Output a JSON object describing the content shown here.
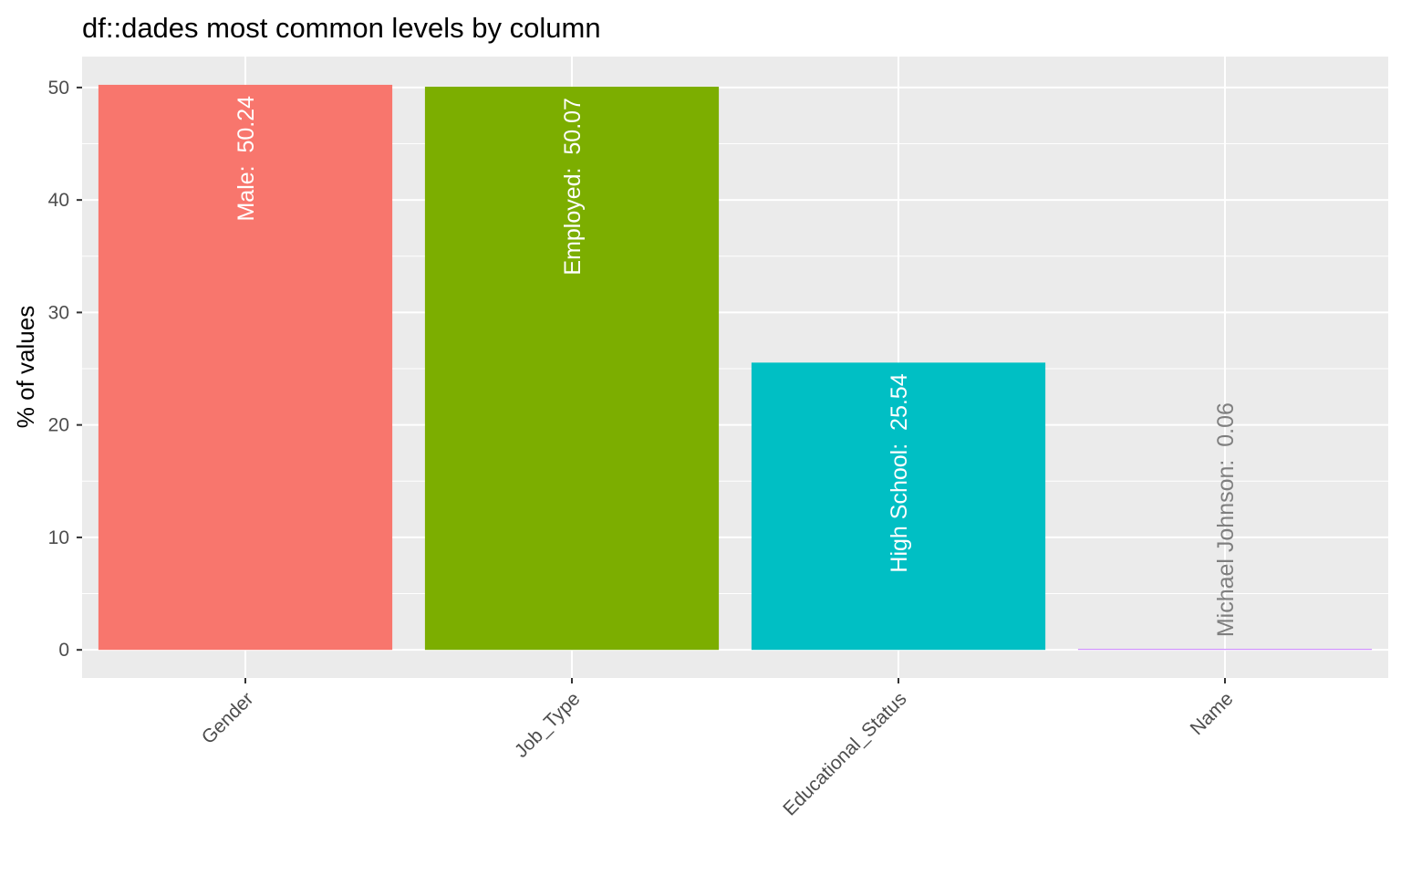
{
  "chart_data": {
    "type": "bar",
    "title": "df::dades most common levels by column",
    "xlabel": "",
    "ylabel": "% of values",
    "categories": [
      "Gender",
      "Job_Type",
      "Educational_Status",
      "Name"
    ],
    "levels": [
      "Male",
      "Employed",
      "High School",
      "Michael Johnson"
    ],
    "values": [
      50.24,
      50.07,
      25.54,
      0.06
    ],
    "data_labels": [
      "Male:  50.24",
      "Employed:  50.07",
      "High School:  25.54",
      "Michael Johnson:  0.06"
    ],
    "colors": [
      "#F8766D",
      "#7CAE00",
      "#00BFC4",
      "#C77CFF"
    ],
    "label_colors": [
      "#ffffff",
      "#ffffff",
      "#ffffff",
      "#7f7f7f"
    ],
    "ylim": [
      -2.5,
      52.75
    ],
    "y_ticks": [
      0,
      10,
      20,
      30,
      40,
      50
    ],
    "panel_background": "#EBEBEB",
    "grid_color": "#ffffff",
    "grid": true,
    "legend": "none",
    "x_tick_rotation": "45"
  }
}
